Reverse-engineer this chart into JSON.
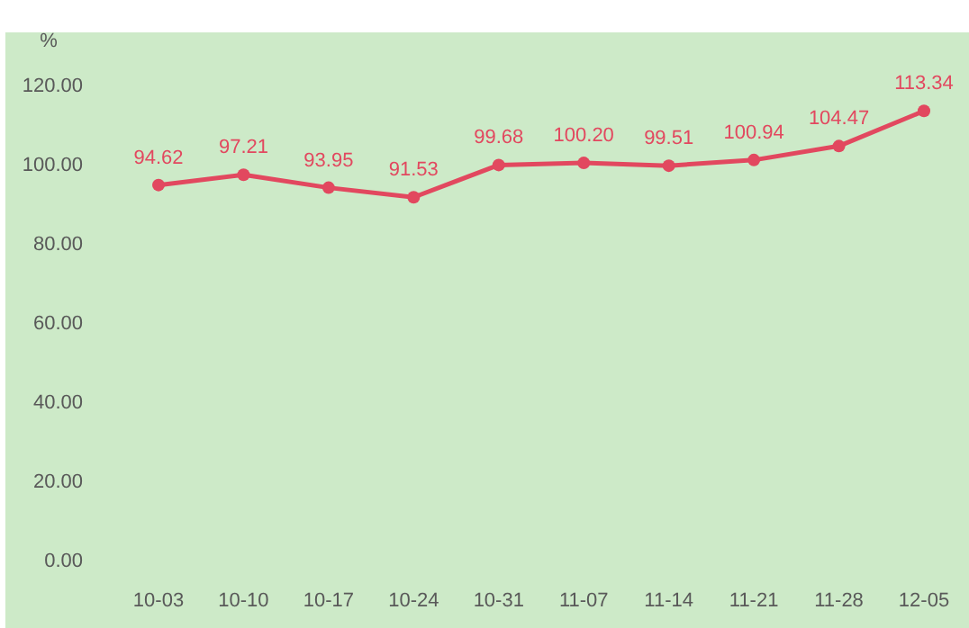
{
  "chart_data": {
    "type": "line",
    "ylabel": "%",
    "categories": [
      "10-03",
      "10-10",
      "10-17",
      "10-24",
      "10-31",
      "11-07",
      "11-14",
      "11-21",
      "11-28",
      "12-05"
    ],
    "series": [
      {
        "color": "#e2485f",
        "values": [
          94.62,
          97.21,
          93.95,
          91.53,
          99.68,
          100.2,
          99.51,
          100.94,
          104.47,
          113.34
        ],
        "value_labels": [
          "94.62",
          "97.21",
          "93.95",
          "91.53",
          "99.68",
          "100.20",
          "99.51",
          "100.94",
          "104.47",
          "113.34"
        ]
      }
    ],
    "ylim": [
      0,
      120
    ],
    "yticks": [
      {
        "value": 0,
        "label": "0.00"
      },
      {
        "value": 20,
        "label": "20.00"
      },
      {
        "value": 40,
        "label": "40.00"
      },
      {
        "value": 60,
        "label": "60.00"
      },
      {
        "value": 80,
        "label": "80.00"
      },
      {
        "value": 100,
        "label": "100.00"
      },
      {
        "value": 120,
        "label": "120.00"
      }
    ],
    "marker": "circle",
    "line_style": "solid"
  }
}
